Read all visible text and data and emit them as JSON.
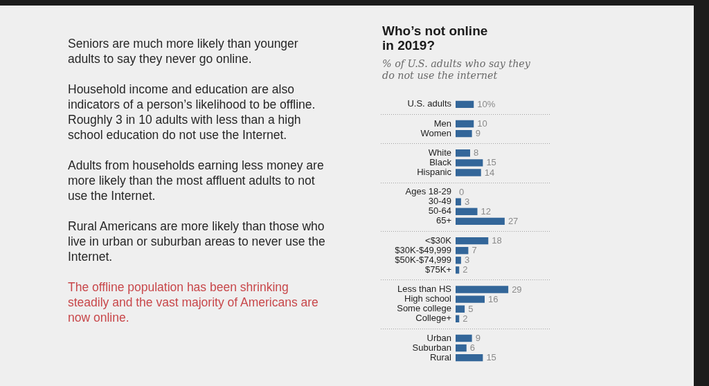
{
  "chart_data": [
    {
      "type": "other",
      "annotations": [
        "Seniors are much more likely than younger adults to say they never go online.",
        "Household income and education are also indicators of a person’s likelihood to be offline. Roughly 3 in 10 adults with less than a high school education do not use the Internet.",
        "Adults from households earning less money are more likely than the most affluent adults to not use the Internet.",
        "Rural Americans are more likely than those who live in urban or suburban areas to never use the Internet.",
        "The offline population has been shrinking steadily and the vast majority of Americans are now online."
      ]
    },
    {
      "type": "bar",
      "orientation": "horizontal",
      "title": "Who’s not online in 2019?",
      "subtitle": "% of U.S. adults who say they do not use the internet",
      "categories": [
        "U.S. adults",
        null,
        "Men",
        "Women",
        null,
        "White",
        "Black",
        "Hispanic",
        null,
        "Ages 18-29",
        "30-49",
        "50-64",
        "65+",
        null,
        "<$30K",
        "$30K-$49,999",
        "$50K-$74,999",
        "$75K+",
        null,
        "Less than HS",
        "High school",
        "Some college",
        "College+",
        null,
        "Urban",
        "Suburban",
        "Rural"
      ],
      "values": [
        10,
        null,
        10,
        9,
        null,
        8,
        15,
        14,
        null,
        0,
        3,
        12,
        27,
        null,
        18,
        7,
        3,
        2,
        null,
        29,
        16,
        5,
        2,
        null,
        9,
        6,
        15
      ],
      "value_labels": [
        "10%",
        null,
        "10",
        "9",
        null,
        "8",
        "15",
        "14",
        null,
        "0",
        "3",
        "12",
        "27",
        null,
        "18",
        "7",
        "3",
        "2",
        null,
        "29",
        "16",
        "5",
        "2",
        null,
        "9",
        "6",
        "15"
      ],
      "color": "#336699",
      "tick_labels": "y"
    }
  ]
}
